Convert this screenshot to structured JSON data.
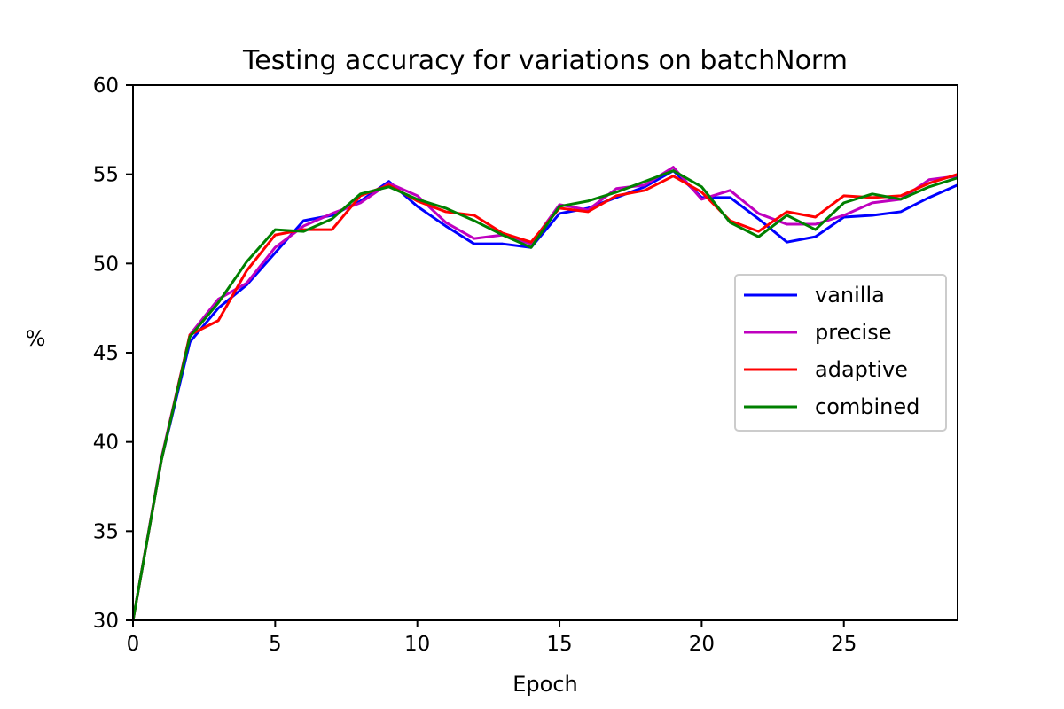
{
  "chart_data": {
    "type": "line",
    "title": "Testing accuracy for variations on batchNorm",
    "xlabel": "Epoch",
    "ylabel": "%",
    "xlim": [
      0,
      29
    ],
    "ylim": [
      30,
      60
    ],
    "xticks": [
      0,
      5,
      10,
      15,
      20,
      25
    ],
    "yticks": [
      30,
      35,
      40,
      45,
      50,
      55,
      60
    ],
    "x": [
      0,
      1,
      2,
      3,
      4,
      5,
      6,
      7,
      8,
      9,
      10,
      11,
      12,
      13,
      14,
      15,
      16,
      17,
      18,
      19,
      20,
      21,
      22,
      23,
      24,
      25,
      26,
      27,
      28,
      29
    ],
    "legend_position": "center-right",
    "grid": false,
    "series": [
      {
        "name": "vanilla",
        "color": "#0000ff",
        "values": [
          30.0,
          39.0,
          45.6,
          47.5,
          48.8,
          50.6,
          52.4,
          52.7,
          53.5,
          54.6,
          53.2,
          52.1,
          51.1,
          51.1,
          50.9,
          52.8,
          53.1,
          53.7,
          54.3,
          55.2,
          53.7,
          53.7,
          52.5,
          51.2,
          51.5,
          52.6,
          52.7,
          52.9,
          53.7,
          54.4
        ]
      },
      {
        "name": "precise",
        "color": "#bf00bf",
        "values": [
          30.0,
          39.1,
          46.0,
          48.0,
          48.9,
          50.9,
          52.1,
          52.8,
          53.4,
          54.5,
          53.8,
          52.3,
          51.4,
          51.6,
          51.1,
          53.3,
          53.0,
          54.2,
          54.4,
          55.4,
          53.6,
          54.1,
          52.8,
          52.2,
          52.2,
          52.7,
          53.4,
          53.6,
          54.7,
          54.9
        ]
      },
      {
        "name": "adaptive",
        "color": "#ff0000",
        "values": [
          30.0,
          39.0,
          46.0,
          46.8,
          49.6,
          51.6,
          51.9,
          51.9,
          53.8,
          54.4,
          53.5,
          52.9,
          52.7,
          51.7,
          51.2,
          53.1,
          52.9,
          53.8,
          54.1,
          54.9,
          54.0,
          52.4,
          51.8,
          52.9,
          52.6,
          53.8,
          53.7,
          53.8,
          54.5,
          55.0
        ]
      },
      {
        "name": "combined",
        "color": "#008000",
        "values": [
          30.0,
          39.0,
          45.9,
          47.8,
          50.1,
          51.9,
          51.8,
          52.5,
          53.9,
          54.3,
          53.6,
          53.1,
          52.4,
          51.6,
          50.9,
          53.2,
          53.5,
          54.0,
          54.6,
          55.2,
          54.3,
          52.3,
          51.5,
          52.7,
          51.9,
          53.4,
          53.9,
          53.6,
          54.3,
          54.8
        ]
      }
    ]
  }
}
